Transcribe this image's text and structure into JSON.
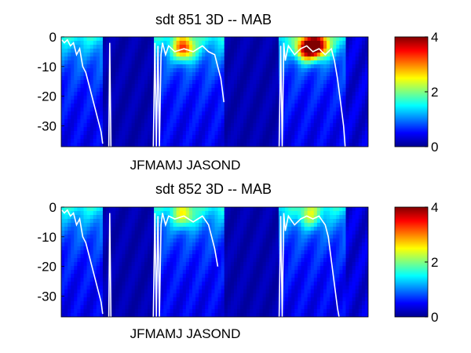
{
  "chart_data": [
    {
      "type": "heatmap",
      "title": "sdt  851 3D   -- MAB",
      "xlabel": "JFMAMJ JASOND",
      "ylabel": "",
      "ylim": [
        -37,
        0
      ],
      "yticks": [
        "0",
        "-10",
        "-20",
        "-30"
      ],
      "ytick_values": [
        0,
        -10,
        -20,
        -30
      ],
      "colorbar": {
        "ticks": [
          "0",
          "2",
          "4"
        ],
        "tick_values": [
          0,
          2,
          4
        ],
        "range": [
          0,
          4
        ],
        "colormap": "jet"
      },
      "hot_spots": [
        {
          "t": 0.4,
          "depth": -4,
          "value": 3.4
        },
        {
          "t": 0.8,
          "depth": -4,
          "value": 4.0
        },
        {
          "t": 0.84,
          "depth": -3,
          "value": 3.6
        }
      ],
      "series": [
        {
          "values": [
            [
              0.002,
              -1
            ],
            [
              0.01,
              -2
            ],
            [
              0.02,
              -1
            ],
            [
              0.03,
              -3
            ],
            [
              0.04,
              -2
            ],
            [
              0.05,
              -6
            ],
            [
              0.06,
              -4
            ],
            [
              0.07,
              -10
            ],
            [
              0.08,
              -12
            ],
            [
              0.09,
              -16
            ],
            [
              0.1,
              -20
            ],
            [
              0.11,
              -24
            ],
            [
              0.12,
              -28
            ],
            [
              0.13,
              -32
            ],
            [
              0.135,
              -36
            ]
          ]
        },
        {
          "values": [
            [
              0.155,
              -37
            ],
            [
              0.158,
              -2
            ],
            [
              0.162,
              -37
            ]
          ]
        },
        {
          "values": [
            [
              0.3,
              -37
            ],
            [
              0.305,
              -2
            ],
            [
              0.31,
              -37
            ],
            [
              0.315,
              -3
            ],
            [
              0.32,
              -37
            ],
            [
              0.325,
              -6
            ],
            [
              0.33,
              -2
            ],
            [
              0.34,
              -6
            ],
            [
              0.35,
              -3
            ],
            [
              0.37,
              -5
            ],
            [
              0.4,
              -4
            ],
            [
              0.43,
              -5
            ],
            [
              0.46,
              -3
            ],
            [
              0.48,
              -5
            ],
            [
              0.5,
              -6
            ],
            [
              0.51,
              -10
            ],
            [
              0.52,
              -14
            ],
            [
              0.525,
              -18
            ],
            [
              0.53,
              -22
            ]
          ]
        },
        {
          "values": [
            [
              0.71,
              -37
            ],
            [
              0.715,
              -3
            ],
            [
              0.72,
              -37
            ],
            [
              0.725,
              -2
            ],
            [
              0.73,
              -8
            ],
            [
              0.74,
              -3
            ],
            [
              0.76,
              -6
            ],
            [
              0.78,
              -4
            ],
            [
              0.8,
              -3
            ],
            [
              0.82,
              -5
            ],
            [
              0.84,
              -4
            ],
            [
              0.86,
              -6
            ],
            [
              0.88,
              -4
            ],
            [
              0.89,
              -8
            ],
            [
              0.9,
              -14
            ],
            [
              0.91,
              -22
            ],
            [
              0.92,
              -30
            ],
            [
              0.925,
              -37
            ]
          ]
        }
      ]
    },
    {
      "type": "heatmap",
      "title": "sdt  852 3D   -- MAB",
      "xlabel": "JFMAMJ JASOND",
      "ylabel": "",
      "ylim": [
        -37,
        0
      ],
      "yticks": [
        "0",
        "-10",
        "-20",
        "-30"
      ],
      "ytick_values": [
        0,
        -10,
        -20,
        -30
      ],
      "colorbar": {
        "ticks": [
          "0",
          "2",
          "4"
        ],
        "tick_values": [
          0,
          2,
          4
        ],
        "range": [
          0,
          4
        ],
        "colormap": "jet"
      },
      "hot_spots": [
        {
          "t": 0.4,
          "depth": -3,
          "value": 2.4
        },
        {
          "t": 0.81,
          "depth": -3,
          "value": 2.2
        }
      ],
      "series": [
        {
          "values": [
            [
              0.002,
              -1
            ],
            [
              0.01,
              -2
            ],
            [
              0.02,
              -1
            ],
            [
              0.03,
              -3
            ],
            [
              0.04,
              -2
            ],
            [
              0.05,
              -6
            ],
            [
              0.06,
              -4
            ],
            [
              0.07,
              -10
            ],
            [
              0.08,
              -12
            ],
            [
              0.09,
              -16
            ],
            [
              0.1,
              -20
            ],
            [
              0.11,
              -24
            ],
            [
              0.12,
              -28
            ],
            [
              0.13,
              -32
            ],
            [
              0.135,
              -36
            ]
          ]
        },
        {
          "values": [
            [
              0.155,
              -37
            ],
            [
              0.158,
              -2
            ],
            [
              0.162,
              -37
            ]
          ]
        },
        {
          "values": [
            [
              0.3,
              -37
            ],
            [
              0.305,
              -2
            ],
            [
              0.31,
              -37
            ],
            [
              0.315,
              -3
            ],
            [
              0.32,
              -37
            ],
            [
              0.325,
              -6
            ],
            [
              0.33,
              -2
            ],
            [
              0.34,
              -6
            ],
            [
              0.35,
              -3
            ],
            [
              0.37,
              -4
            ],
            [
              0.4,
              -3
            ],
            [
              0.43,
              -5
            ],
            [
              0.46,
              -3
            ],
            [
              0.48,
              -6
            ],
            [
              0.49,
              -10
            ],
            [
              0.5,
              -14
            ],
            [
              0.51,
              -20
            ]
          ]
        },
        {
          "values": [
            [
              0.71,
              -37
            ],
            [
              0.715,
              -3
            ],
            [
              0.72,
              -37
            ],
            [
              0.725,
              -2
            ],
            [
              0.73,
              -8
            ],
            [
              0.74,
              -3
            ],
            [
              0.76,
              -6
            ],
            [
              0.78,
              -4
            ],
            [
              0.8,
              -3
            ],
            [
              0.82,
              -4
            ],
            [
              0.84,
              -3
            ],
            [
              0.86,
              -6
            ],
            [
              0.87,
              -10
            ],
            [
              0.88,
              -18
            ],
            [
              0.89,
              -26
            ],
            [
              0.9,
              -34
            ],
            [
              0.905,
              -37
            ]
          ]
        }
      ]
    }
  ]
}
